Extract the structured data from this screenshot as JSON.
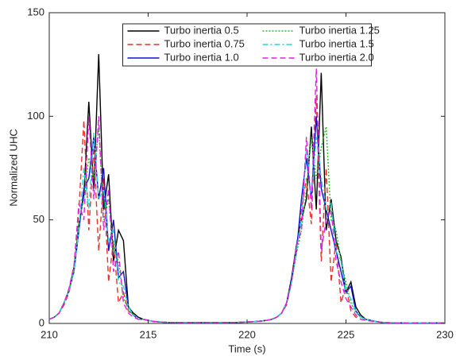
{
  "chart_data": {
    "type": "line",
    "xlabel": "Time (s)",
    "ylabel": "Normalized UHC",
    "x": [
      210,
      210.25,
      210.5,
      210.75,
      211,
      211.25,
      211.5,
      211.75,
      212,
      212.25,
      212.5,
      212.75,
      213,
      213.25,
      213.5,
      213.75,
      214,
      214.25,
      214.5,
      214.75,
      215,
      215.25,
      215.5,
      215.75,
      216,
      216.25,
      216.5,
      216.75,
      217,
      217.25,
      217.5,
      217.75,
      218,
      218.25,
      218.5,
      218.75,
      219,
      219.25,
      219.5,
      219.75,
      220,
      220.25,
      220.5,
      220.75,
      221,
      221.25,
      221.5,
      221.75,
      222,
      222.25,
      222.5,
      222.75,
      223,
      223.25,
      223.5,
      223.75,
      224,
      224.25,
      224.5,
      224.75,
      225,
      225.25,
      225.5,
      225.75,
      226,
      226.25,
      226.5,
      226.75,
      227,
      227.25,
      227.5,
      227.75,
      228,
      228.25,
      228.5,
      228.75,
      229,
      229.25,
      229.5,
      229.75,
      230
    ],
    "xlim": [
      210,
      230
    ],
    "xticks": [
      210,
      215,
      220,
      225,
      230
    ],
    "ylim": [
      0,
      150
    ],
    "yticks": [
      0,
      50,
      100,
      150
    ],
    "legend": "upper center",
    "series": [
      {
        "name": "Turbo inertia 0.5",
        "color": "#000000",
        "style": "solid",
        "values": [
          2,
          3,
          5,
          10,
          16,
          27,
          48,
          62,
          107,
          65,
          130,
          55,
          72,
          30,
          45,
          40,
          8,
          5,
          3,
          2,
          1.5,
          1,
          0.8,
          0.6,
          0.5,
          0.5,
          0.4,
          0.4,
          0.4,
          0.4,
          0.4,
          0.4,
          0.4,
          0.4,
          0.4,
          0.4,
          0.4,
          0.5,
          0.5,
          0.6,
          0.7,
          0.8,
          1,
          1.2,
          1.5,
          2,
          3,
          5,
          10,
          22,
          38,
          50,
          60,
          95,
          55,
          121,
          45,
          60,
          40,
          32,
          15,
          20,
          8,
          4,
          2,
          1.5,
          1,
          0.6,
          0.4,
          0.3,
          0.3,
          0.3,
          0.3,
          0.3,
          0.3,
          0.3,
          0.3,
          0.3,
          0.3,
          0.3,
          0.3
        ]
      },
      {
        "name": "Turbo inertia 0.75",
        "color": "#e8322b",
        "style": "dashed",
        "values": [
          2,
          3,
          5,
          9,
          15,
          26,
          55,
          98,
          45,
          85,
          35,
          70,
          20,
          40,
          10,
          15,
          6,
          4,
          2,
          2,
          1.5,
          1,
          0.8,
          0.6,
          0.5,
          0.5,
          0.4,
          0.4,
          0.4,
          0.4,
          0.4,
          0.4,
          0.4,
          0.4,
          0.4,
          0.4,
          0.4,
          0.5,
          0.5,
          0.6,
          0.7,
          0.8,
          1,
          1.2,
          1.5,
          2,
          3,
          5,
          9,
          20,
          36,
          55,
          70,
          48,
          110,
          30,
          75,
          20,
          40,
          10,
          18,
          6,
          3,
          2,
          1.5,
          1.2,
          1,
          0.6,
          0.4,
          0.3,
          0.3,
          0.3,
          0.3,
          0.3,
          0.3,
          0.3,
          0.3,
          0.3,
          0.3,
          0.3,
          0.3
        ]
      },
      {
        "name": "Turbo inertia 1.0",
        "color": "#1010d0",
        "style": "solid",
        "values": [
          2,
          3,
          5,
          10,
          16,
          25,
          45,
          65,
          70,
          90,
          60,
          75,
          35,
          50,
          22,
          25,
          8,
          4,
          2,
          2,
          1.5,
          1,
          0.8,
          0.6,
          0.5,
          0.5,
          0.4,
          0.4,
          0.4,
          0.4,
          0.4,
          0.4,
          0.4,
          0.4,
          0.4,
          0.4,
          0.4,
          0.5,
          0.5,
          0.6,
          0.7,
          0.8,
          1,
          1.2,
          1.5,
          2,
          3,
          5,
          10,
          21,
          35,
          60,
          80,
          60,
          100,
          65,
          55,
          45,
          35,
          25,
          15,
          18,
          6,
          3,
          2,
          1.5,
          1,
          0.6,
          0.4,
          0.3,
          0.3,
          0.3,
          0.3,
          0.3,
          0.3,
          0.3,
          0.3,
          0.3,
          0.3,
          0.3,
          0.3
        ]
      },
      {
        "name": "Turbo inertia 1.25",
        "color": "#22c022",
        "style": "dotted",
        "values": [
          2,
          3,
          5,
          10,
          16,
          26,
          50,
          60,
          80,
          70,
          95,
          50,
          60,
          35,
          30,
          12,
          7,
          4,
          2,
          2,
          1.5,
          1,
          0.8,
          0.6,
          0.5,
          0.5,
          0.4,
          0.4,
          0.4,
          0.4,
          0.4,
          0.4,
          0.4,
          0.4,
          0.4,
          0.4,
          0.4,
          0.5,
          0.5,
          0.6,
          0.7,
          0.8,
          1,
          1.2,
          1.5,
          2,
          3,
          5,
          10,
          20,
          34,
          45,
          65,
          90,
          70,
          85,
          95,
          50,
          45,
          30,
          20,
          10,
          5,
          3,
          2,
          1.5,
          1,
          0.6,
          0.4,
          0.3,
          0.3,
          0.3,
          0.3,
          0.3,
          0.3,
          0.3,
          0.3,
          0.3,
          0.3,
          0.3,
          0.3
        ]
      },
      {
        "name": "Turbo inertia 1.5",
        "color": "#22d8e0",
        "style": "dashdot",
        "values": [
          2,
          3,
          5,
          10,
          16,
          25,
          46,
          75,
          55,
          92,
          60,
          65,
          40,
          45,
          20,
          18,
          8,
          4,
          2,
          2,
          1.5,
          1,
          0.8,
          0.6,
          0.5,
          0.5,
          0.4,
          0.4,
          0.4,
          0.4,
          0.4,
          0.4,
          0.4,
          0.4,
          0.4,
          0.4,
          0.4,
          0.5,
          0.5,
          0.6,
          0.7,
          0.8,
          1,
          1.2,
          1.5,
          2,
          3,
          5,
          10,
          20,
          36,
          50,
          85,
          60,
          90,
          70,
          55,
          58,
          35,
          30,
          15,
          12,
          6,
          3,
          2,
          1.5,
          1,
          0.6,
          0.4,
          0.3,
          0.3,
          0.3,
          0.3,
          0.3,
          0.3,
          0.3,
          0.3,
          0.3,
          0.3,
          0.3,
          0.3
        ]
      },
      {
        "name": "Turbo inertia 2.0",
        "color": "#e020e0",
        "style": "dashed",
        "values": [
          2,
          3,
          5,
          10,
          17,
          28,
          58,
          50,
          100,
          60,
          100,
          45,
          65,
          25,
          35,
          10,
          5,
          3,
          2,
          2,
          1.5,
          1,
          0.8,
          0.6,
          0.5,
          0.5,
          0.4,
          0.4,
          0.4,
          0.4,
          0.4,
          0.4,
          0.4,
          0.4,
          0.4,
          0.4,
          0.4,
          0.5,
          0.5,
          0.6,
          0.7,
          0.8,
          1,
          1.2,
          1.5,
          2,
          3,
          5,
          10,
          20,
          38,
          45,
          90,
          55,
          123,
          35,
          50,
          55,
          30,
          20,
          12,
          8,
          4,
          2,
          1.5,
          1.2,
          1,
          0.6,
          0.4,
          0.3,
          0.3,
          0.3,
          0.3,
          0.3,
          0.3,
          0.3,
          0.3,
          0.3,
          0.3,
          0.3,
          0.3
        ]
      }
    ]
  }
}
